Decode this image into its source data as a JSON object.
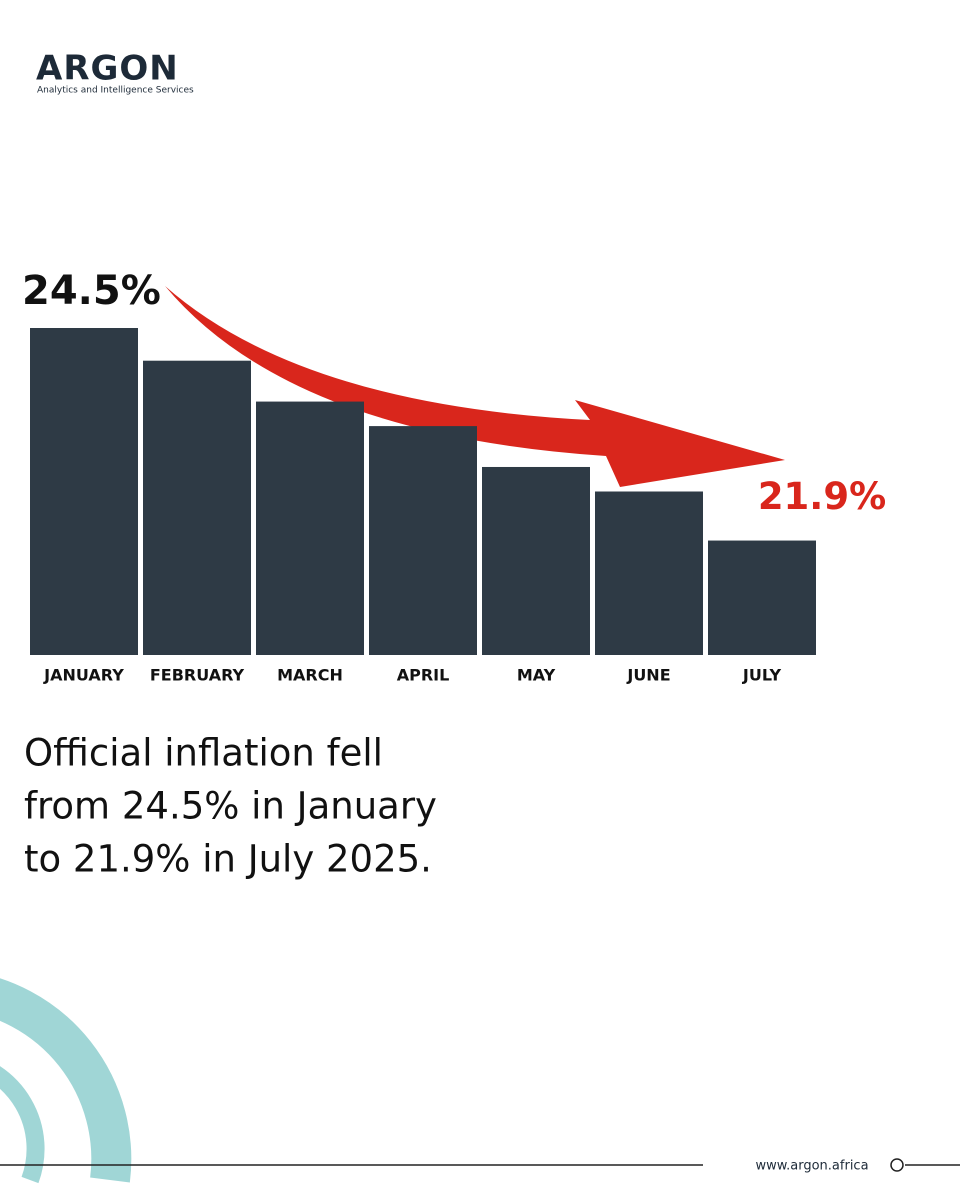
{
  "brand": {
    "name": "ARGON",
    "tagline": "Analytics and Intelligence Services",
    "website": "www.argon.africa"
  },
  "chart_data": {
    "type": "bar",
    "categories": [
      "JANUARY",
      "FEBRUARY",
      "MARCH",
      "APRIL",
      "MAY",
      "JUNE",
      "JULY"
    ],
    "values": [
      24.5,
      24.1,
      23.6,
      23.3,
      22.8,
      22.5,
      21.9
    ],
    "value_labels": [
      "24.5%",
      null,
      null,
      null,
      null,
      null,
      "21.9%"
    ],
    "color": "#2e3a45",
    "ylim": [
      20.5,
      24.5
    ],
    "caption": [
      "Official inflation fell",
      "from 24.5% in January",
      "to 21.9% in July 2025."
    ]
  }
}
